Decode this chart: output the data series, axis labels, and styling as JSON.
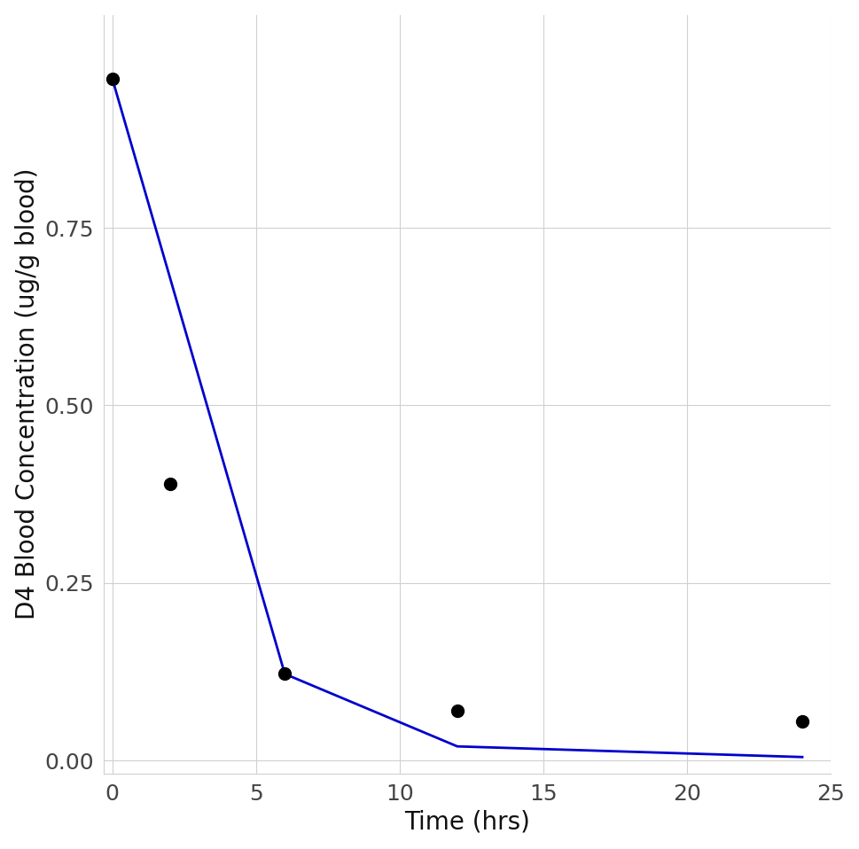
{
  "scatter_x": [
    0,
    2,
    6,
    12,
    24
  ],
  "scatter_y": [
    0.96,
    0.39,
    0.122,
    0.07,
    0.055
  ],
  "line_x": [
    0,
    6,
    12,
    24
  ],
  "line_y": [
    0.96,
    0.122,
    0.02,
    0.005
  ],
  "scatter_color": "#000000",
  "scatter_size": 100,
  "line_color": "#0000CC",
  "line_width": 2.0,
  "xlabel": "Time (hrs)",
  "ylabel": "D4 Blood Concentration (ug/g blood)",
  "xlim": [
    -0.3,
    25.0
  ],
  "ylim": [
    -0.018,
    1.05
  ],
  "xticks": [
    0,
    5,
    10,
    15,
    20,
    25
  ],
  "yticks": [
    0.0,
    0.25,
    0.5,
    0.75
  ],
  "grid_color": "#d0d0d0",
  "background_color": "#ffffff",
  "xlabel_fontsize": 20,
  "ylabel_fontsize": 20,
  "tick_fontsize": 18,
  "tick_label_color": "#444444",
  "label_color": "#111111"
}
